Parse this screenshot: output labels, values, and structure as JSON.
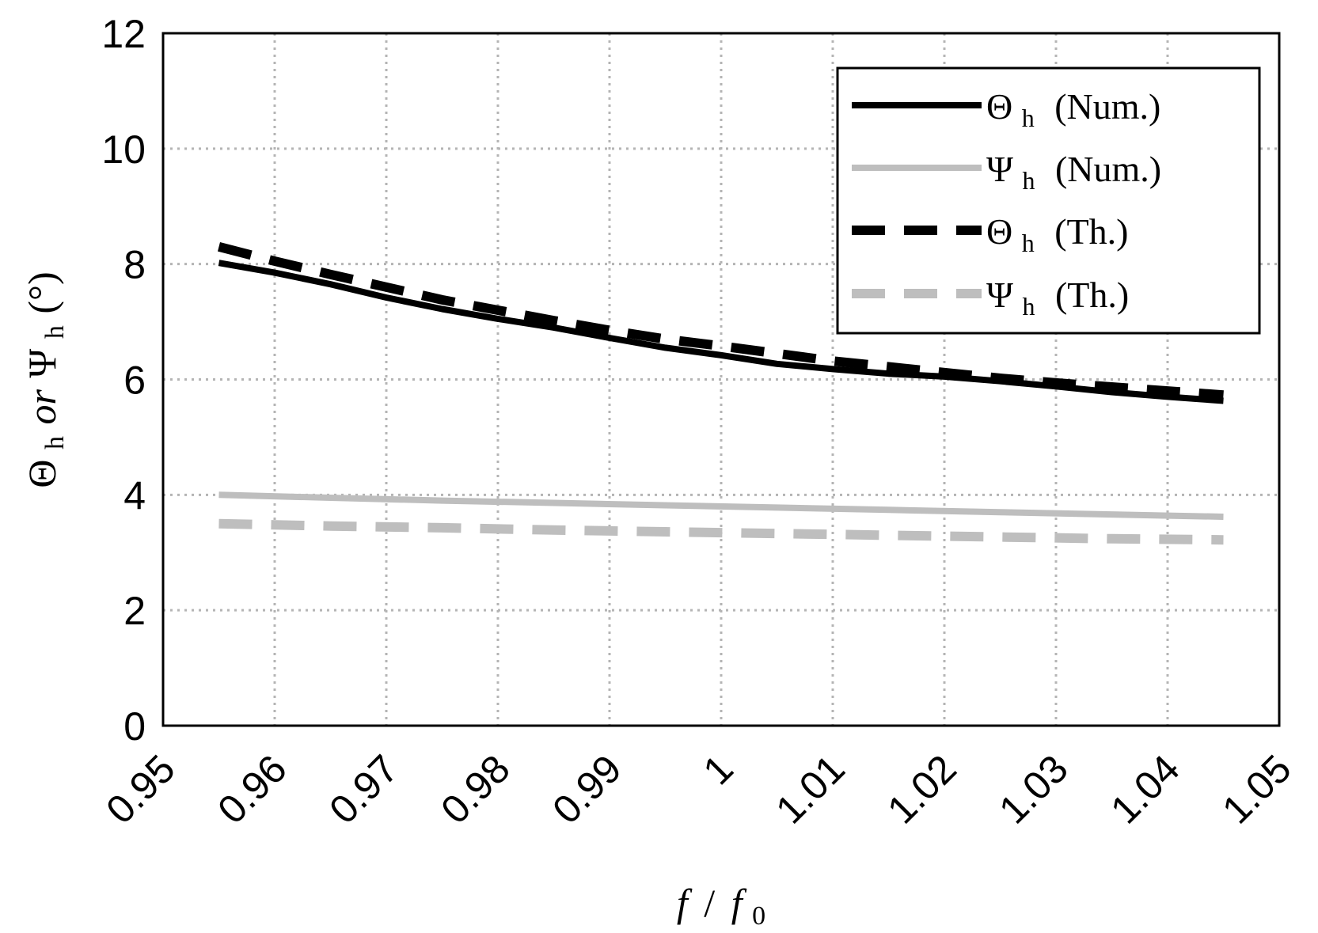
{
  "chart_data": {
    "type": "line",
    "title": "",
    "xlabel": "f / f0",
    "xlabel_parts": {
      "f": "f",
      "slash": "/",
      "f0_base": "f",
      "f0_sub": "0"
    },
    "ylabel": "Θh or Ψh (°)",
    "ylabel_parts": {
      "theta": "Θ",
      "theta_sub": "h",
      "or": "or",
      "psi": "Ψ",
      "psi_sub": "h",
      "unit": "(°)"
    },
    "xlim": [
      0.95,
      1.05
    ],
    "ylim": [
      0,
      12
    ],
    "xticks": [
      0.95,
      0.96,
      0.97,
      0.98,
      0.99,
      1,
      1.01,
      1.02,
      1.03,
      1.04,
      1.05
    ],
    "xtick_labels": [
      "0.95",
      "0.96",
      "0.97",
      "0.98",
      "0.99",
      "1",
      "1.01",
      "1.02",
      "1.03",
      "1.04",
      "1.05"
    ],
    "yticks": [
      0,
      2,
      4,
      6,
      8,
      10,
      12
    ],
    "ytick_labels": [
      "0",
      "2",
      "4",
      "6",
      "8",
      "10",
      "12"
    ],
    "grid": true,
    "legend_position": "top-right",
    "series": [
      {
        "name": "Θh (Num.)",
        "name_parts": {
          "symbol": "Θ",
          "sub": "h",
          "suffix": "(Num.)"
        },
        "color": "#000000",
        "style": "solid",
        "x": [
          0.955,
          0.96,
          0.965,
          0.97,
          0.975,
          0.98,
          0.985,
          0.99,
          0.995,
          1.0,
          1.005,
          1.01,
          1.015,
          1.02,
          1.025,
          1.03,
          1.035,
          1.04,
          1.045
        ],
        "y": [
          8.02,
          7.85,
          7.65,
          7.42,
          7.22,
          7.05,
          6.9,
          6.72,
          6.55,
          6.42,
          6.27,
          6.18,
          6.1,
          6.05,
          5.97,
          5.88,
          5.78,
          5.7,
          5.63
        ]
      },
      {
        "name": "Ψh (Num.)",
        "name_parts": {
          "symbol": "Ψ",
          "sub": "h",
          "suffix": "(Num.)"
        },
        "color": "#bebebe",
        "style": "solid",
        "x": [
          0.955,
          0.965,
          0.975,
          0.985,
          0.995,
          1.005,
          1.015,
          1.025,
          1.035,
          1.045
        ],
        "y": [
          4.0,
          3.95,
          3.9,
          3.86,
          3.82,
          3.78,
          3.74,
          3.7,
          3.66,
          3.62
        ]
      },
      {
        "name": "Θh (Th.)",
        "name_parts": {
          "symbol": "Θ",
          "sub": "h",
          "suffix": "(Th.)"
        },
        "color": "#000000",
        "style": "dashed",
        "x": [
          0.955,
          0.96,
          0.965,
          0.97,
          0.975,
          0.98,
          0.985,
          0.99,
          0.995,
          1.0,
          1.005,
          1.01,
          1.015,
          1.02,
          1.025,
          1.03,
          1.035,
          1.04,
          1.045
        ],
        "y": [
          8.3,
          8.05,
          7.82,
          7.6,
          7.38,
          7.2,
          7.02,
          6.85,
          6.7,
          6.58,
          6.45,
          6.32,
          6.22,
          6.12,
          6.02,
          5.94,
          5.87,
          5.8,
          5.73
        ]
      },
      {
        "name": "Ψh (Th.)",
        "name_parts": {
          "symbol": "Ψ",
          "sub": "h",
          "suffix": "(Th.)"
        },
        "color": "#bebebe",
        "style": "dashed",
        "x": [
          0.955,
          0.965,
          0.975,
          0.985,
          0.995,
          1.005,
          1.015,
          1.025,
          1.035,
          1.045
        ],
        "y": [
          3.5,
          3.46,
          3.43,
          3.39,
          3.36,
          3.33,
          3.3,
          3.27,
          3.24,
          3.22
        ]
      }
    ]
  }
}
